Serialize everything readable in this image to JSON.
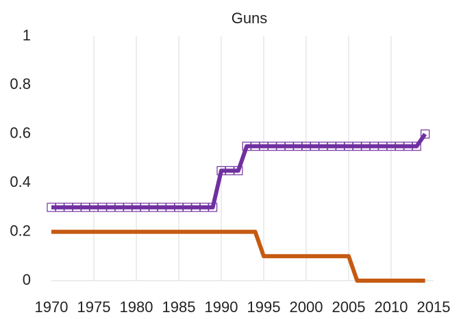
{
  "chart_data": {
    "type": "line",
    "title": "Guns",
    "x": [
      1970,
      1971,
      1972,
      1973,
      1974,
      1975,
      1976,
      1977,
      1978,
      1979,
      1980,
      1981,
      1982,
      1983,
      1984,
      1985,
      1986,
      1987,
      1988,
      1989,
      1990,
      1991,
      1992,
      1993,
      1994,
      1995,
      1996,
      1997,
      1998,
      1999,
      2000,
      2001,
      2002,
      2003,
      2004,
      2005,
      2006,
      2007,
      2008,
      2009,
      2010,
      2011,
      2012,
      2013,
      2014
    ],
    "series": [
      {
        "color": "#c55a11",
        "values": [
          0.2,
          0.2,
          0.2,
          0.2,
          0.2,
          0.2,
          0.2,
          0.2,
          0.2,
          0.2,
          0.2,
          0.2,
          0.2,
          0.2,
          0.2,
          0.2,
          0.2,
          0.2,
          0.2,
          0.2,
          0.2,
          0.2,
          0.2,
          0.2,
          0.2,
          0.1,
          0.1,
          0.1,
          0.1,
          0.1,
          0.1,
          0.1,
          0.1,
          0.1,
          0.1,
          0.1,
          0,
          0,
          0,
          0,
          0,
          0,
          0,
          0,
          0
        ]
      },
      {
        "color": "#7030a0",
        "marker": "square",
        "values": [
          0.3,
          0.3,
          0.3,
          0.3,
          0.3,
          0.3,
          0.3,
          0.3,
          0.3,
          0.3,
          0.3,
          0.3,
          0.3,
          0.3,
          0.3,
          0.3,
          0.3,
          0.3,
          0.3,
          0.3,
          0.45,
          0.45,
          0.45,
          0.55,
          0.55,
          0.55,
          0.55,
          0.55,
          0.55,
          0.55,
          0.55,
          0.55,
          0.55,
          0.55,
          0.55,
          0.55,
          0.55,
          0.55,
          0.55,
          0.55,
          0.55,
          0.55,
          0.55,
          0.55,
          0.6
        ]
      }
    ],
    "xlim": [
      1970,
      2015
    ],
    "xticks": [
      1970,
      1975,
      1980,
      1985,
      1990,
      1995,
      2000,
      2005,
      2010,
      2015
    ],
    "ylim": [
      0,
      1
    ],
    "yticks": [
      0,
      0.2,
      0.4,
      0.6,
      0.8,
      1
    ],
    "grid": true
  }
}
